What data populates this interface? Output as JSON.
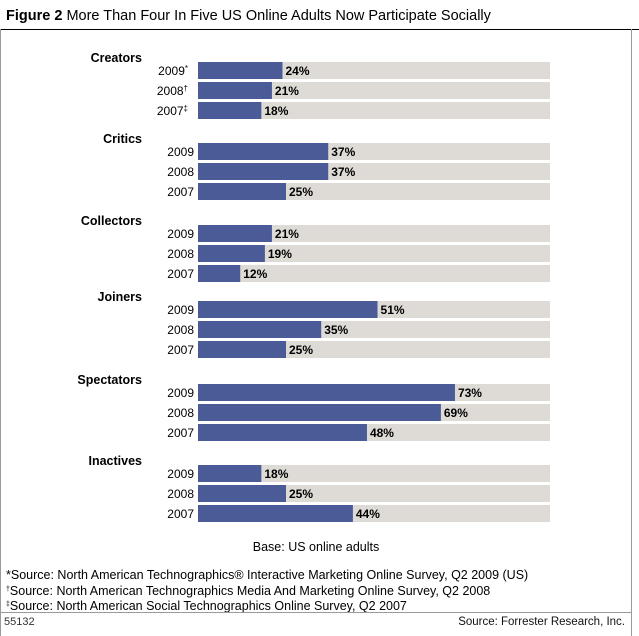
{
  "figure": {
    "label": "Figure 2",
    "title": "More Than Four In Five US Online Adults Now Participate Socially"
  },
  "base_note": "Base: US online adults",
  "sources": [
    {
      "mark": "*",
      "text": "Source: North American Technographics® Interactive Marketing Online Survey, Q2 2009 (US)"
    },
    {
      "mark": "†",
      "text": "Source: North American Technographics Media And Marketing Online Survey, Q2 2008"
    },
    {
      "mark": "‡",
      "text": "Source: North American Social Technographics Online Survey, Q2 2007"
    }
  ],
  "footer": {
    "id": "55132",
    "source": "Source: Forrester Research, Inc."
  },
  "colors": {
    "bar": "#4a5b97",
    "track": "#dedbd7"
  },
  "chart_data": {
    "type": "bar",
    "orientation": "horizontal",
    "value_unit": "%",
    "xlim": [
      0,
      100
    ],
    "groups": [
      {
        "name": "Creators",
        "items": [
          {
            "year": "2009",
            "mark": "*",
            "value": 24,
            "label": "24%"
          },
          {
            "year": "2008",
            "mark": "†",
            "value": 21,
            "label": "21%"
          },
          {
            "year": "2007",
            "mark": "‡",
            "value": 18,
            "label": "18%"
          }
        ]
      },
      {
        "name": "Critics",
        "items": [
          {
            "year": "2009",
            "value": 37,
            "label": "37%"
          },
          {
            "year": "2008",
            "value": 37,
            "label": "37%"
          },
          {
            "year": "2007",
            "value": 25,
            "label": "25%"
          }
        ]
      },
      {
        "name": "Collectors",
        "items": [
          {
            "year": "2009",
            "value": 21,
            "label": "21%"
          },
          {
            "year": "2008",
            "value": 19,
            "label": "19%"
          },
          {
            "year": "2007",
            "value": 12,
            "label": "12%"
          }
        ]
      },
      {
        "name": "Joiners",
        "items": [
          {
            "year": "2009",
            "value": 51,
            "label": "51%"
          },
          {
            "year": "2008",
            "value": 35,
            "label": "35%"
          },
          {
            "year": "2007",
            "value": 25,
            "label": "25%"
          }
        ]
      },
      {
        "name": "Spectators",
        "items": [
          {
            "year": "2009",
            "value": 73,
            "label": "73%"
          },
          {
            "year": "2008",
            "value": 69,
            "label": "69%"
          },
          {
            "year": "2007",
            "value": 48,
            "label": "48%"
          }
        ]
      },
      {
        "name": "Inactives",
        "items": [
          {
            "year": "2009",
            "value": 18,
            "label": "18%"
          },
          {
            "year": "2008",
            "value": 25,
            "label": "25%"
          },
          {
            "year": "2007",
            "value": 44,
            "label": "44%"
          }
        ]
      }
    ]
  }
}
